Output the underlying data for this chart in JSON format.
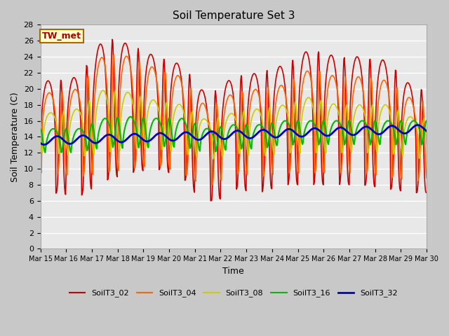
{
  "title": "Soil Temperature Set 3",
  "xlabel": "Time",
  "ylabel": "Soil Temperature (C)",
  "ylim": [
    0,
    28
  ],
  "annotation": "TW_met",
  "series": {
    "SoilT3_02": {
      "color": "#cc0000",
      "lw": 1.2
    },
    "SoilT3_04": {
      "color": "#ff6600",
      "lw": 1.2
    },
    "SoilT3_08": {
      "color": "#cccc00",
      "lw": 1.2
    },
    "SoilT3_16": {
      "color": "#00bb00",
      "lw": 1.5
    },
    "SoilT3_32": {
      "color": "#0000cc",
      "lw": 2.0
    }
  },
  "xtick_labels": [
    "Mar 15",
    "Mar 16",
    "Mar 17",
    "Mar 18",
    "Mar 19",
    "Mar 20",
    "Mar 21",
    "Mar 22",
    "Mar 23",
    "Mar 24",
    "Mar 25",
    "Mar 26",
    "Mar 27",
    "Mar 28",
    "Mar 29",
    "Mar 30"
  ],
  "xlim": [
    0,
    15
  ],
  "fig_bg": "#c8c8c8",
  "ax_bg": "#e8e8e8"
}
